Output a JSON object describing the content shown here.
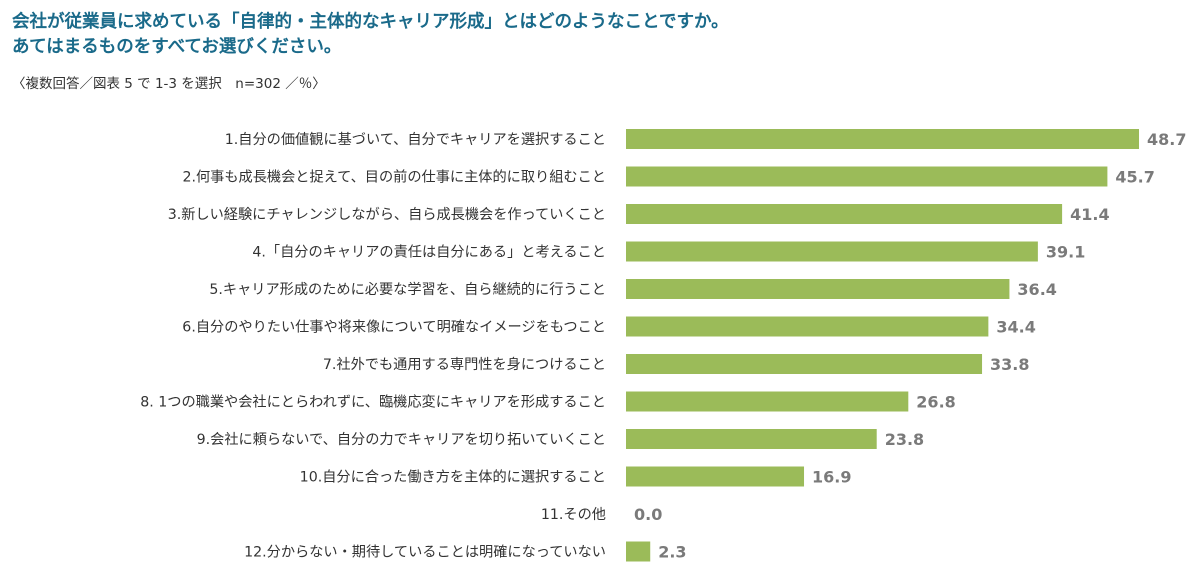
{
  "chart_data": {
    "type": "bar",
    "orientation": "horizontal",
    "title": "会社が従業員に求めている「自律的・主体的なキャリア形成」とはどのようなことですか。",
    "subtitle": "あてはまるものをすべてお選びください。",
    "note": "〈複数回答／図表 5 で 1-3 を選択　n=302 ／％〉",
    "bar_color": "#9bbb59",
    "xlim": [
      0,
      48.7
    ],
    "grid": false,
    "categories": [
      "1.自分の価値観に基づいて、自分でキャリアを選択すること",
      "2.何事も成長機会と捉えて、目の前の仕事に主体的に取り組むこと",
      "3.新しい経験にチャレンジしながら、自ら成長機会を作っていくこと",
      "4.「自分のキャリアの責任は自分にある」と考えること",
      "5.キャリア形成のために必要な学習を、自ら継続的に行うこと",
      "6.自分のやりたい仕事や将来像について明確なイメージをもつこと",
      "7.社外でも通用する専門性を身につけること",
      "8. 1つの職業や会社にとらわれずに、臨機応変にキャリアを形成すること",
      "9.会社に頼らないで、自分の力でキャリアを切り拓いていくこと",
      "10.自分に合った働き方を主体的に選択すること",
      "11.その他",
      "12.分からない・期待していることは明確になっていない"
    ],
    "values": [
      48.7,
      45.7,
      41.4,
      39.1,
      36.4,
      34.4,
      33.8,
      26.8,
      23.8,
      16.9,
      0.0,
      2.3
    ],
    "value_labels": [
      "48.7",
      "45.7",
      "41.4",
      "39.1",
      "36.4",
      "34.4",
      "33.8",
      "26.8",
      "23.8",
      "16.9",
      "0.0",
      "2.3"
    ]
  }
}
